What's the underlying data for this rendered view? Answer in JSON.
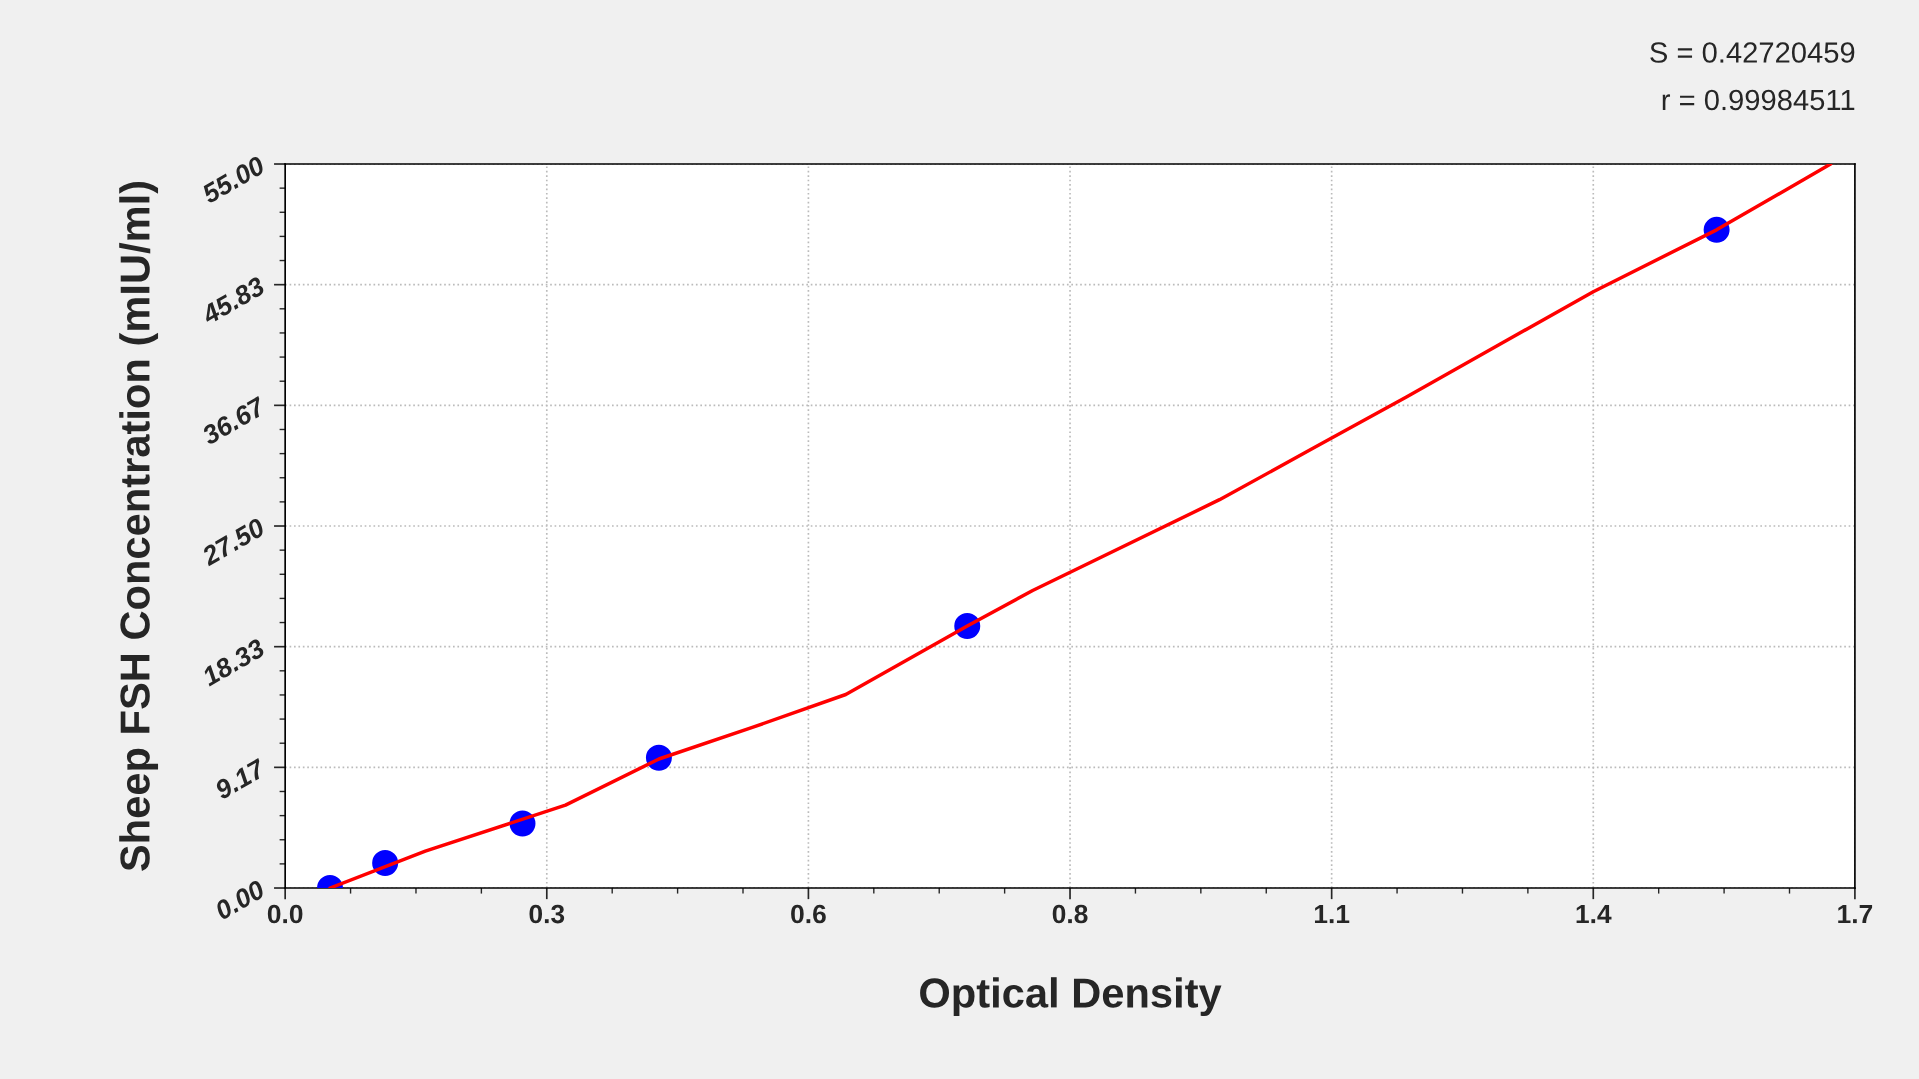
{
  "chart_data": {
    "type": "scatter",
    "xlabel": "Optical Density",
    "ylabel": "Sheep FSH Concentration (mIU/ml)",
    "annotations": [
      "S = 0.42720459",
      "r = 0.99984511"
    ],
    "series": [
      {
        "color": "#0000ff",
        "x": [
          0.048,
          0.107,
          0.254,
          0.4,
          0.73,
          1.532
        ],
        "values": [
          0,
          1.9,
          4.9,
          9.9,
          19.9,
          50.0
        ],
        "marker": "circle"
      },
      {
        "type": "line",
        "color": "#ff0000",
        "x": [
          0.048,
          0.15,
          0.3,
          0.4,
          0.5,
          0.6,
          0.73,
          0.8,
          1.0,
          1.1,
          1.2,
          1.3,
          1.4,
          1.532,
          1.654
        ],
        "values": [
          0,
          2.8,
          6.3,
          9.8,
          12.2,
          14.7,
          19.9,
          22.6,
          29.5,
          33.4,
          37.3,
          41.3,
          45.3,
          50.0,
          55.0
        ],
        "line_style": "solid"
      }
    ],
    "xlim": [
      0,
      1.68
    ],
    "xticks": [
      {
        "value": 0,
        "label": "0.0"
      },
      {
        "value": 0.28,
        "label": "0.3"
      },
      {
        "value": 0.56,
        "label": "0.6"
      },
      {
        "value": 0.84,
        "label": "0.8"
      },
      {
        "value": 1.12,
        "label": "1.1"
      },
      {
        "value": 1.4,
        "label": "1.4"
      },
      {
        "value": 1.68,
        "label": "1.7"
      }
    ],
    "ylim": [
      0,
      55
    ],
    "yticks": [
      {
        "value": 0,
        "label": "0.00"
      },
      {
        "value": 9.1667,
        "label": "9.17"
      },
      {
        "value": 18.3333,
        "label": "18.33"
      },
      {
        "value": 27.5,
        "label": "27.50"
      },
      {
        "value": 36.6667,
        "label": "36.67"
      },
      {
        "value": 45.8333,
        "label": "45.83"
      },
      {
        "value": 55,
        "label": "55.00"
      }
    ],
    "grid": true
  }
}
